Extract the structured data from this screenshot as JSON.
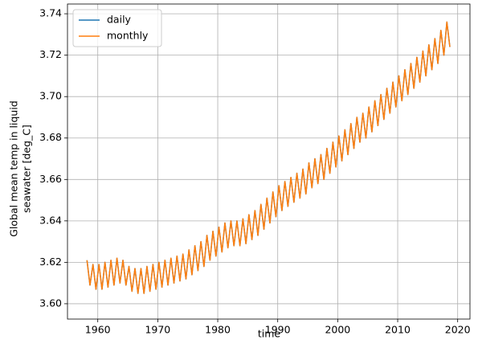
{
  "chart_data": {
    "type": "line",
    "xlabel": "time",
    "ylabel": [
      "Global mean temp in liquid",
      "seawater [deg_C]"
    ],
    "xlim": [
      1954.95,
      2022.05
    ],
    "ylim": [
      3.5926,
      3.7447
    ],
    "xticks": [
      1960,
      1970,
      1980,
      1990,
      2000,
      2010,
      2020
    ],
    "yticks": [
      {
        "value": 3.6,
        "label": "3.60"
      },
      3.62,
      3.64,
      3.66,
      3.68,
      {
        "value": 3.7,
        "label": "3.70"
      },
      3.72,
      3.74
    ],
    "grid": true,
    "legend": "upper left",
    "x": [
      1958.2,
      1958.7,
      1959.2,
      1959.7,
      1960.2,
      1960.7,
      1961.2,
      1961.7,
      1962.2,
      1962.7,
      1963.2,
      1963.7,
      1964.2,
      1964.7,
      1965.2,
      1965.7,
      1966.2,
      1966.7,
      1967.2,
      1967.7,
      1968.2,
      1968.7,
      1969.2,
      1969.7,
      1970.2,
      1970.7,
      1971.2,
      1971.7,
      1972.2,
      1972.7,
      1973.2,
      1973.7,
      1974.2,
      1974.7,
      1975.2,
      1975.7,
      1976.2,
      1976.7,
      1977.2,
      1977.7,
      1978.2,
      1978.7,
      1979.2,
      1979.7,
      1980.2,
      1980.7,
      1981.2,
      1981.7,
      1982.2,
      1982.7,
      1983.2,
      1983.7,
      1984.2,
      1984.7,
      1985.2,
      1985.7,
      1986.2,
      1986.7,
      1987.2,
      1987.7,
      1988.2,
      1988.7,
      1989.2,
      1989.7,
      1990.2,
      1990.7,
      1991.2,
      1991.7,
      1992.2,
      1992.7,
      1993.2,
      1993.7,
      1994.2,
      1994.7,
      1995.2,
      1995.7,
      1996.2,
      1996.7,
      1997.2,
      1997.7,
      1998.2,
      1998.7,
      1999.2,
      1999.7,
      2000.2,
      2000.7,
      2001.2,
      2001.7,
      2002.2,
      2002.7,
      2003.2,
      2003.7,
      2004.2,
      2004.7,
      2005.2,
      2005.7,
      2006.2,
      2006.7,
      2007.2,
      2007.7,
      2008.2,
      2008.7,
      2009.2,
      2009.7,
      2010.2,
      2010.7,
      2011.2,
      2011.7,
      2012.2,
      2012.7,
      2013.2,
      2013.7,
      2014.2,
      2014.7,
      2015.2,
      2015.7,
      2016.2,
      2016.7,
      2017.2,
      2017.7,
      2018.2,
      2018.7
    ],
    "series": [
      {
        "name": "daily",
        "color": "#1f77b4",
        "values": [
          3.621,
          3.609,
          3.619,
          3.607,
          3.619,
          3.607,
          3.62,
          3.608,
          3.621,
          3.609,
          3.622,
          3.61,
          3.621,
          3.609,
          3.618,
          3.606,
          3.617,
          3.605,
          3.617,
          3.605,
          3.618,
          3.606,
          3.619,
          3.607,
          3.62,
          3.608,
          3.621,
          3.609,
          3.622,
          3.61,
          3.623,
          3.611,
          3.624,
          3.612,
          3.626,
          3.614,
          3.628,
          3.616,
          3.63,
          3.618,
          3.633,
          3.621,
          3.635,
          3.623,
          3.637,
          3.625,
          3.639,
          3.627,
          3.64,
          3.628,
          3.64,
          3.628,
          3.641,
          3.629,
          3.643,
          3.631,
          3.645,
          3.633,
          3.648,
          3.636,
          3.651,
          3.639,
          3.654,
          3.642,
          3.657,
          3.645,
          3.659,
          3.647,
          3.661,
          3.649,
          3.663,
          3.651,
          3.665,
          3.653,
          3.668,
          3.656,
          3.67,
          3.658,
          3.672,
          3.66,
          3.675,
          3.663,
          3.678,
          3.666,
          3.681,
          3.669,
          3.684,
          3.672,
          3.687,
          3.675,
          3.69,
          3.678,
          3.692,
          3.68,
          3.695,
          3.683,
          3.698,
          3.686,
          3.701,
          3.689,
          3.704,
          3.692,
          3.707,
          3.695,
          3.71,
          3.698,
          3.713,
          3.701,
          3.716,
          3.704,
          3.719,
          3.707,
          3.722,
          3.71,
          3.725,
          3.713,
          3.728,
          3.716,
          3.732,
          3.72,
          3.736,
          3.724
        ]
      },
      {
        "name": "monthly",
        "color": "#ff7f0e",
        "values": [
          3.621,
          3.609,
          3.619,
          3.607,
          3.619,
          3.607,
          3.62,
          3.608,
          3.621,
          3.609,
          3.622,
          3.61,
          3.621,
          3.609,
          3.618,
          3.606,
          3.617,
          3.605,
          3.617,
          3.605,
          3.618,
          3.606,
          3.619,
          3.607,
          3.62,
          3.608,
          3.621,
          3.609,
          3.622,
          3.61,
          3.623,
          3.611,
          3.624,
          3.612,
          3.626,
          3.614,
          3.628,
          3.616,
          3.63,
          3.618,
          3.633,
          3.621,
          3.635,
          3.623,
          3.637,
          3.625,
          3.639,
          3.627,
          3.64,
          3.628,
          3.64,
          3.628,
          3.641,
          3.629,
          3.643,
          3.631,
          3.645,
          3.633,
          3.648,
          3.636,
          3.651,
          3.639,
          3.654,
          3.642,
          3.657,
          3.645,
          3.659,
          3.647,
          3.661,
          3.649,
          3.663,
          3.651,
          3.665,
          3.653,
          3.668,
          3.656,
          3.67,
          3.658,
          3.672,
          3.66,
          3.675,
          3.663,
          3.678,
          3.666,
          3.681,
          3.669,
          3.684,
          3.672,
          3.687,
          3.675,
          3.69,
          3.678,
          3.692,
          3.68,
          3.695,
          3.683,
          3.698,
          3.686,
          3.701,
          3.689,
          3.704,
          3.692,
          3.707,
          3.695,
          3.71,
          3.698,
          3.713,
          3.701,
          3.716,
          3.704,
          3.719,
          3.707,
          3.722,
          3.71,
          3.725,
          3.713,
          3.728,
          3.716,
          3.732,
          3.72,
          3.736,
          3.724
        ]
      }
    ]
  }
}
